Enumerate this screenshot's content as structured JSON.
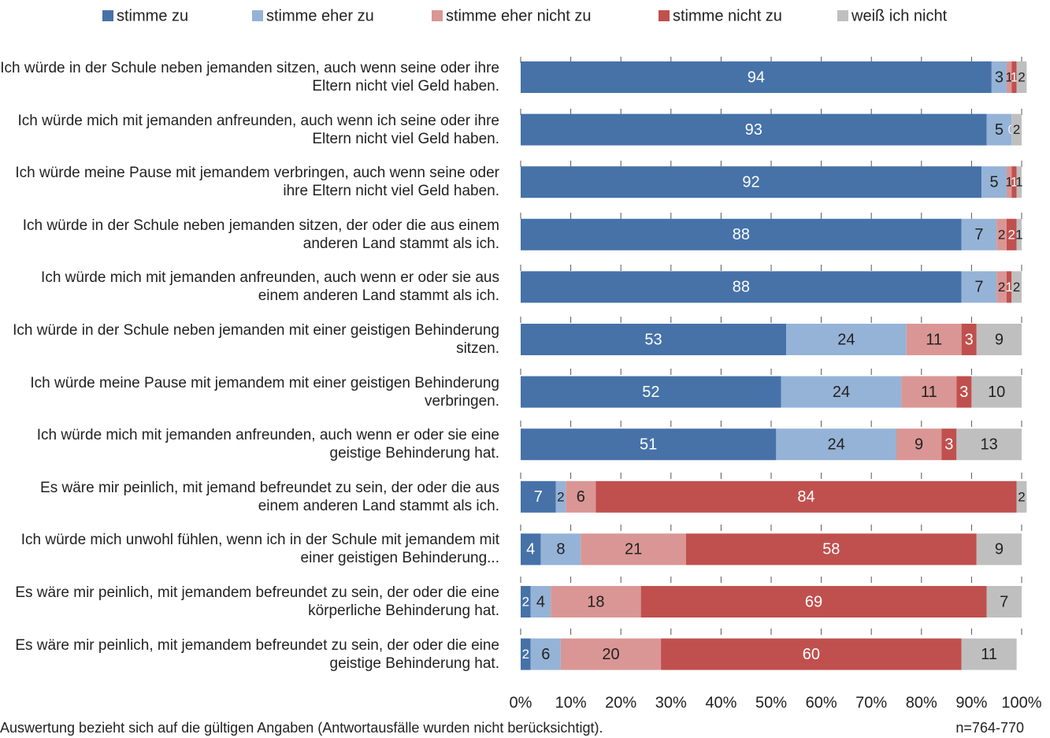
{
  "chart_data": {
    "type": "stacked-bar-horizontal",
    "categories": [
      "Ich würde in der Schule neben jemanden sitzen, auch wenn seine oder ihre Eltern nicht viel Geld haben.",
      "Ich würde mich mit jemanden anfreunden, auch wenn ich seine oder ihre Eltern nicht viel Geld haben.",
      "Ich würde meine Pause mit jemandem verbringen, auch wenn seine oder ihre Eltern nicht viel Geld haben.",
      "Ich würde in der Schule neben jemanden sitzen, der oder die aus einem anderen Land stammt als ich.",
      "Ich würde mich mit jemanden anfreunden, auch wenn er oder sie aus einem anderen Land stammt als ich.",
      "Ich würde in der Schule neben jemanden mit einer geistigen Behinderung sitzen.",
      "Ich würde meine Pause mit jemandem mit einer geistigen Behinderung verbringen.",
      "Ich würde mich mit jemanden anfreunden, auch wenn er oder sie eine geistige Behinderung hat.",
      "Es wäre mir peinlich, mit jemand befreundet zu sein, der oder die aus einem anderen Land stammt als ich.",
      "Ich würde mich unwohl fühlen, wenn ich in der Schule mit jemandem mit einer geistigen Behinderung...",
      "Es wäre mir peinlich, mit jemandem befreundet zu sein, der oder die eine körperliche Behinderung hat.",
      "Es wäre mir peinlich, mit jemandem befreundet zu sein, der oder die eine geistige Behinderung hat."
    ],
    "series": [
      {
        "name": "stimme zu",
        "color": "#4672a8",
        "values": [
          94,
          93,
          92,
          88,
          88,
          53,
          52,
          51,
          7,
          4,
          2,
          2
        ]
      },
      {
        "name": "stimme eher zu",
        "color": "#95b3d7",
        "values": [
          3,
          5,
          5,
          7,
          7,
          24,
          24,
          24,
          2,
          8,
          4,
          6
        ]
      },
      {
        "name": "stimme eher nicht zu",
        "color": "#d99694",
        "values": [
          1,
          0,
          1,
          2,
          2,
          11,
          11,
          9,
          6,
          21,
          18,
          20
        ]
      },
      {
        "name": "stimme nicht zu",
        "color": "#c0504d",
        "values": [
          1,
          0,
          1,
          2,
          1,
          3,
          3,
          3,
          84,
          58,
          69,
          60
        ]
      },
      {
        "name": "weiß ich nicht",
        "color": "#bfbfbf",
        "values": [
          2,
          2,
          1,
          1,
          2,
          9,
          10,
          13,
          2,
          9,
          7,
          11
        ]
      }
    ],
    "xlim": [
      0,
      100
    ],
    "xticks": [
      {
        "value": 0,
        "label": "0%"
      },
      {
        "value": 10,
        "label": "10%"
      },
      {
        "value": 20,
        "label": "20%"
      },
      {
        "value": 30,
        "label": "30%"
      },
      {
        "value": 40,
        "label": "40%"
      },
      {
        "value": 50,
        "label": "50%"
      },
      {
        "value": 60,
        "label": "60%"
      },
      {
        "value": 70,
        "label": "70%"
      },
      {
        "value": 80,
        "label": "80%"
      },
      {
        "value": 90,
        "label": "90%"
      },
      {
        "value": 100,
        "label": "100%"
      }
    ],
    "grid": true,
    "legend": "top",
    "footnote": "Auswertung bezieht sich auf die gültigen Angaben (Antwortausfälle wurden nicht berücksichtigt).",
    "sample_note": "n=764-770"
  }
}
